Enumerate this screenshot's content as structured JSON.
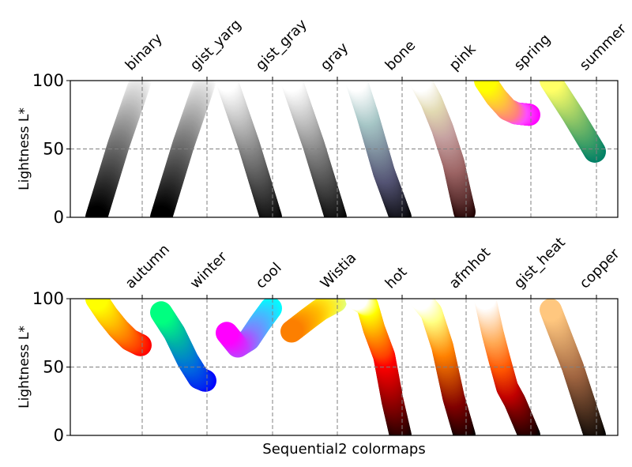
{
  "chart_data": [
    {
      "type": "scatter",
      "ylabel": "Lightness L*",
      "ylim": [
        0,
        100
      ],
      "yticks": [
        "0",
        "50",
        "100"
      ],
      "grid": true,
      "series": [
        {
          "name": "binary",
          "stops": [
            [
              0,
              100,
              "#ffffff"
            ],
            [
              0.5,
              53,
              "#808080"
            ],
            [
              1,
              0,
              "#000000"
            ]
          ]
        },
        {
          "name": "gist_yarg",
          "stops": [
            [
              0,
              100,
              "#ffffff"
            ],
            [
              0.5,
              53,
              "#808080"
            ],
            [
              1,
              0,
              "#000000"
            ]
          ]
        },
        {
          "name": "gist_gray",
          "stops": [
            [
              0,
              0,
              "#000000"
            ],
            [
              0.5,
              53,
              "#808080"
            ],
            [
              1,
              100,
              "#ffffff"
            ]
          ]
        },
        {
          "name": "gray",
          "stops": [
            [
              0,
              0,
              "#000000"
            ],
            [
              0.5,
              53,
              "#808080"
            ],
            [
              1,
              100,
              "#ffffff"
            ]
          ]
        },
        {
          "name": "bone",
          "stops": [
            [
              0,
              0,
              "#000000"
            ],
            [
              0.375,
              33,
              "#545474"
            ],
            [
              0.75,
              75,
              "#a6c6c6"
            ],
            [
              1,
              100,
              "#ffffff"
            ]
          ]
        },
        {
          "name": "pink",
          "stops": [
            [
              0,
              4,
              "#1e0000"
            ],
            [
              0.1,
              18,
              "#5a2e2e"
            ],
            [
              0.25,
              40,
              "#9c6464"
            ],
            [
              0.5,
              65,
              "#c5a0a0"
            ],
            [
              0.75,
              85,
              "#e2dab2"
            ],
            [
              1,
              100,
              "#ffffff"
            ]
          ]
        },
        {
          "name": "spring",
          "stops": [
            [
              0,
              75,
              "#ff00ff"
            ],
            [
              0.3,
              76,
              "#ff4dff"
            ],
            [
              0.5,
              79,
              "#ff8080"
            ],
            [
              0.75,
              88,
              "#ffbf40"
            ],
            [
              1,
              100,
              "#ffff00"
            ]
          ]
        },
        {
          "name": "summer",
          "stops": [
            [
              0,
              48,
              "#008066"
            ],
            [
              0.5,
              75,
              "#80bf66"
            ],
            [
              1,
              100,
              "#ffff66"
            ]
          ]
        }
      ]
    },
    {
      "type": "scatter",
      "xlabel": "Sequential2 colormaps",
      "ylabel": "Lightness L*",
      "ylim": [
        0,
        100
      ],
      "yticks": [
        "0",
        "50",
        "100"
      ],
      "grid": true,
      "series": [
        {
          "name": "autumn",
          "stops": [
            [
              0,
              66,
              "#ff0000"
            ],
            [
              0.25,
              70,
              "#ff4000"
            ],
            [
              0.5,
              78,
              "#ff8000"
            ],
            [
              0.75,
              88,
              "#ffbf00"
            ],
            [
              1,
              100,
              "#ffff00"
            ]
          ]
        },
        {
          "name": "winter",
          "stops": [
            [
              0,
              40,
              "#0000ff"
            ],
            [
              0.15,
              42,
              "#0026f0"
            ],
            [
              0.4,
              55,
              "#0066e0"
            ],
            [
              0.7,
              75,
              "#00b3a6"
            ],
            [
              1,
              90,
              "#00ff80"
            ]
          ]
        },
        {
          "name": "cool",
          "stops": [
            [
              0,
              93,
              "#00ffff"
            ],
            [
              0.25,
              82,
              "#40bfff"
            ],
            [
              0.5,
              70,
              "#8080ff"
            ],
            [
              0.75,
              65,
              "#bf40ff"
            ],
            [
              1,
              75,
              "#ff00ff"
            ]
          ]
        },
        {
          "name": "Wistia",
          "stops": [
            [
              0,
              98,
              "#e4ff7a"
            ],
            [
              0.35,
              92,
              "#ffe81a"
            ],
            [
              0.6,
              86,
              "#ffbd00"
            ],
            [
              1,
              76,
              "#fc7f00"
            ]
          ]
        },
        {
          "name": "hot",
          "stops": [
            [
              0,
              0,
              "#0b0000"
            ],
            [
              0.18,
              25,
              "#7a0000"
            ],
            [
              0.37,
              58,
              "#ff0000"
            ],
            [
              0.45,
              65,
              "#ff4000"
            ],
            [
              0.6,
              78,
              "#ff9000"
            ],
            [
              0.75,
              95,
              "#ffff00"
            ],
            [
              1,
              100,
              "#ffffff"
            ]
          ]
        },
        {
          "name": "afmhot",
          "stops": [
            [
              0,
              0,
              "#000000"
            ],
            [
              0.25,
              28,
              "#800000"
            ],
            [
              0.5,
              65,
              "#ff8000"
            ],
            [
              0.75,
              90,
              "#ffff80"
            ],
            [
              1,
              100,
              "#ffffff"
            ]
          ]
        },
        {
          "name": "gist_heat",
          "stops": [
            [
              0,
              0,
              "#000000"
            ],
            [
              0.33,
              25,
              "#7f0000"
            ],
            [
              0.5,
              35,
              "#c00000"
            ],
            [
              0.67,
              55,
              "#ff5500"
            ],
            [
              0.83,
              75,
              "#ffaa55"
            ],
            [
              1,
              100,
              "#ffffff"
            ]
          ]
        },
        {
          "name": "copper",
          "stops": [
            [
              0,
              0,
              "#000000"
            ],
            [
              0.5,
              50,
              "#9f6440"
            ],
            [
              1,
              92,
              "#ffc77f"
            ]
          ]
        }
      ]
    }
  ]
}
